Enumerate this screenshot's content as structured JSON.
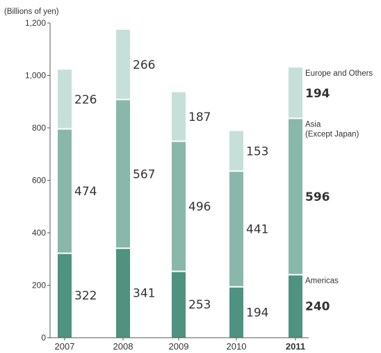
{
  "chart_data": {
    "type": "bar",
    "stacked": true,
    "unit_label": "(Billions of yen)",
    "categories": [
      "2007",
      "2008",
      "2009",
      "2010",
      "2011"
    ],
    "highlight_category": "2011",
    "ylim": [
      0,
      1200
    ],
    "yticks": [
      0,
      200,
      400,
      600,
      800,
      "1,000",
      "1,200"
    ],
    "ytick_values": [
      0,
      200,
      400,
      600,
      800,
      1000,
      1200
    ],
    "series": [
      {
        "name": "Americas",
        "values": [
          322,
          341,
          253,
          194,
          240
        ],
        "color": "#4e927f"
      },
      {
        "name": "Asia\n(Except Japan)",
        "values": [
          474,
          567,
          496,
          441,
          596
        ],
        "color": "#89b7aa"
      },
      {
        "name": "Europe and Others",
        "values": [
          226,
          266,
          187,
          153,
          194
        ],
        "color": "#c7dfd9"
      }
    ],
    "grid": false,
    "legend_placement": "right, beside final bar"
  }
}
